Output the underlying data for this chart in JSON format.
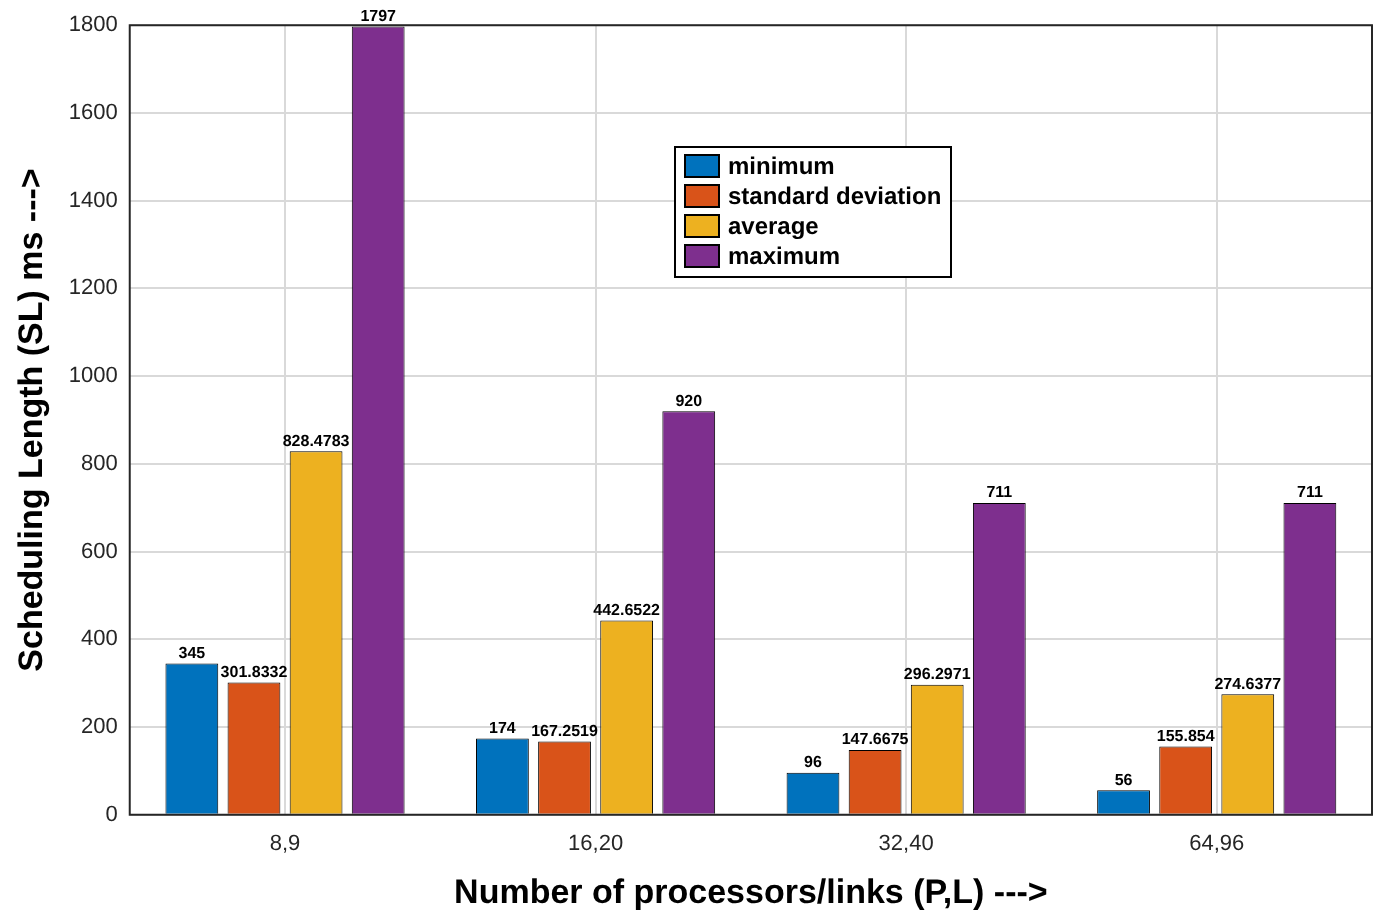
{
  "chart_data": {
    "type": "bar",
    "xlabel": "Number of processors/links (P,L) --->",
    "ylabel": "Scheduling Length (SL) ms --->",
    "categories": [
      "8,9",
      "16,20",
      "32,40",
      "64,96"
    ],
    "series": [
      {
        "name": "minimum",
        "color": "#0072bd",
        "values": [
          345,
          174,
          96,
          56
        ]
      },
      {
        "name": "standard deviation",
        "color": "#d95319",
        "values": [
          301.8332,
          167.2519,
          147.6675,
          155.854
        ]
      },
      {
        "name": "average",
        "color": "#edb120",
        "values": [
          828.4783,
          442.6522,
          296.2971,
          274.6377
        ]
      },
      {
        "name": "maximum",
        "color": "#7e2f8e",
        "values": [
          1797,
          920,
          711,
          711
        ]
      }
    ],
    "ylim": [
      0,
      1800
    ],
    "yticks": [
      0,
      200,
      400,
      600,
      800,
      1000,
      1200,
      1400,
      1600,
      1800
    ],
    "grid": true,
    "legend": "top",
    "data_labels": true
  }
}
